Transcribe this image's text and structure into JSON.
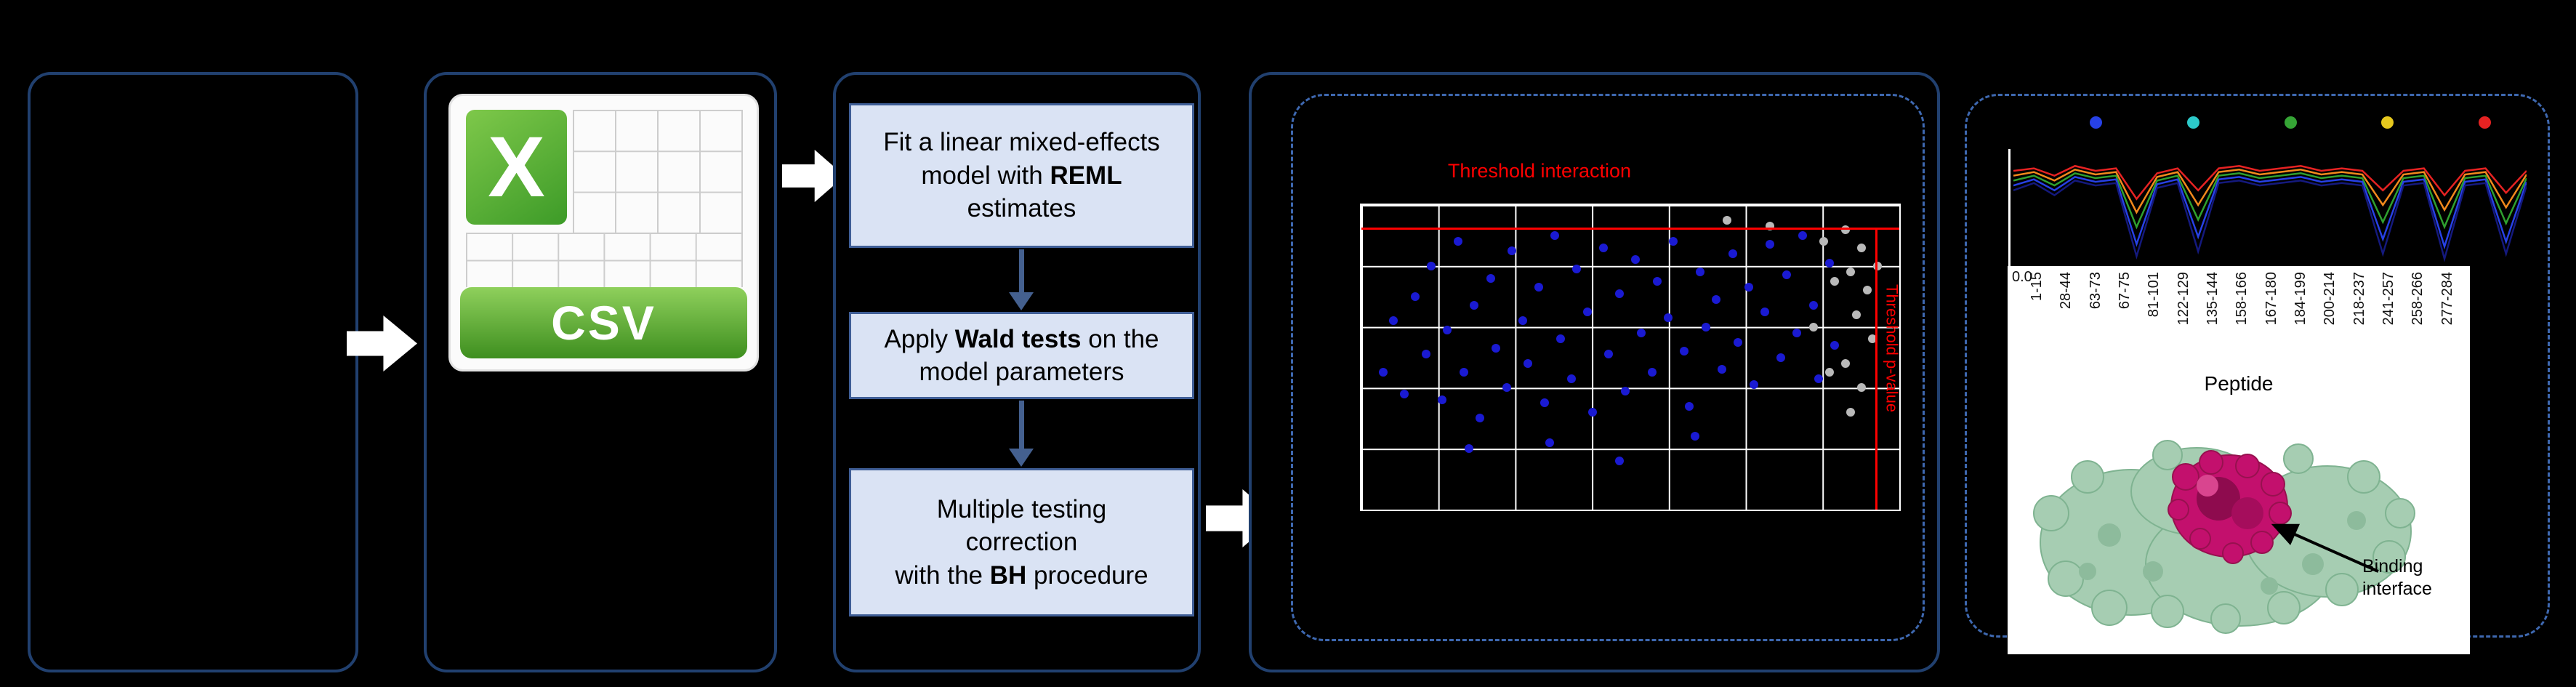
{
  "figure": {
    "csv_icon": {
      "letter": "X",
      "label": "CSV"
    },
    "steps": {
      "box1": {
        "pre": "Fit a linear mixed-effects model with ",
        "bold": "REML",
        "post": " estimates"
      },
      "box2": {
        "pre": "Apply ",
        "bold": "Wald tests",
        "post": " on the model parameters"
      },
      "box3": {
        "line1": "Multiple testing",
        "line2": "correction",
        "pre": "with the ",
        "bold": "BH",
        "post": " procedure"
      }
    },
    "protein": {
      "annotation_line1": "Binding",
      "annotation_line2": "interface"
    }
  },
  "chart_data": [
    {
      "type": "scatter",
      "title": "Threshold interaction",
      "vertical_threshold_label": "Threshold p-value",
      "grid": {
        "cols": 7,
        "rows": 5,
        "color": "#ffffff"
      },
      "thresholds": {
        "h_y_pct": 7.5,
        "v_x_pct": 95.5,
        "color": "#ff0000"
      },
      "series": [
        {
          "name": "blue-points",
          "color": "#1a1ad2",
          "points": [
            [
              4,
              55
            ],
            [
              6,
              38
            ],
            [
              8,
              62
            ],
            [
              10,
              30
            ],
            [
              12,
              49
            ],
            [
              13,
              20
            ],
            [
              15,
              64
            ],
            [
              16,
              41
            ],
            [
              18,
              12
            ],
            [
              19,
              55
            ],
            [
              21,
              33
            ],
            [
              22,
              70
            ],
            [
              24,
              24
            ],
            [
              25,
              47
            ],
            [
              27,
              60
            ],
            [
              28,
              15
            ],
            [
              30,
              38
            ],
            [
              31,
              52
            ],
            [
              33,
              27
            ],
            [
              34,
              65
            ],
            [
              36,
              10
            ],
            [
              37,
              44
            ],
            [
              39,
              57
            ],
            [
              40,
              21
            ],
            [
              42,
              35
            ],
            [
              43,
              68
            ],
            [
              45,
              14
            ],
            [
              46,
              49
            ],
            [
              48,
              29
            ],
            [
              49,
              61
            ],
            [
              51,
              18
            ],
            [
              52,
              42
            ],
            [
              54,
              55
            ],
            [
              55,
              25
            ],
            [
              57,
              37
            ],
            [
              58,
              12
            ],
            [
              60,
              48
            ],
            [
              61,
              66
            ],
            [
              63,
              22
            ],
            [
              64,
              40
            ],
            [
              66,
              31
            ],
            [
              67,
              54
            ],
            [
              69,
              16
            ],
            [
              70,
              45
            ],
            [
              72,
              27
            ],
            [
              73,
              59
            ],
            [
              75,
              35
            ],
            [
              76,
              13
            ],
            [
              78,
              50
            ],
            [
              79,
              23
            ],
            [
              81,
              42
            ],
            [
              82,
              10
            ],
            [
              84,
              33
            ],
            [
              85,
              57
            ],
            [
              87,
              19
            ],
            [
              88,
              46
            ],
            [
              20,
              80
            ],
            [
              35,
              78
            ],
            [
              48,
              84
            ],
            [
              62,
              76
            ]
          ]
        },
        {
          "name": "gray-points",
          "color": "#b9b9b9",
          "points": [
            [
              90,
              8
            ],
            [
              93,
              14
            ],
            [
              91,
              22
            ],
            [
              94,
              28
            ],
            [
              92,
              36
            ],
            [
              95,
              44
            ],
            [
              90,
              52
            ],
            [
              93,
              60
            ],
            [
              91,
              68
            ],
            [
              86,
              12
            ],
            [
              88,
              25
            ],
            [
              84,
              40
            ],
            [
              96,
              20
            ],
            [
              87,
              55
            ],
            [
              76,
              7
            ],
            [
              68,
              5
            ]
          ]
        }
      ]
    },
    {
      "type": "line",
      "xlabel": "Peptide",
      "y_first_tick": "0.0",
      "x_tick_labels": [
        "1-15",
        "28-44",
        "63-73",
        "67-75",
        "81-101",
        "122-129",
        "135-144",
        "158-166",
        "167-180",
        "184-199",
        "200-214",
        "218-237",
        "241-257",
        "258-266",
        "277-284"
      ],
      "legend_dot_colors": [
        "#2741e6",
        "#2cc9c9",
        "#35a435",
        "#e6c81e",
        "#e62222"
      ],
      "series": [
        {
          "name": "red",
          "color": "#e62222",
          "values": [
            0.78,
            0.8,
            0.74,
            0.82,
            0.78,
            0.8,
            0.55,
            0.76,
            0.8,
            0.62,
            0.8,
            0.82,
            0.78,
            0.8,
            0.82,
            0.78,
            0.8,
            0.78,
            0.62,
            0.78,
            0.8,
            0.58,
            0.78,
            0.8,
            0.6,
            0.78
          ]
        },
        {
          "name": "orange",
          "color": "#f2891c",
          "values": [
            0.74,
            0.77,
            0.7,
            0.79,
            0.75,
            0.77,
            0.44,
            0.73,
            0.77,
            0.5,
            0.77,
            0.79,
            0.75,
            0.77,
            0.79,
            0.75,
            0.77,
            0.75,
            0.5,
            0.75,
            0.77,
            0.46,
            0.75,
            0.77,
            0.48,
            0.75
          ]
        },
        {
          "name": "green",
          "color": "#2fa02f",
          "values": [
            0.7,
            0.74,
            0.66,
            0.76,
            0.72,
            0.74,
            0.32,
            0.7,
            0.74,
            0.38,
            0.74,
            0.76,
            0.72,
            0.74,
            0.76,
            0.72,
            0.74,
            0.72,
            0.36,
            0.72,
            0.74,
            0.32,
            0.72,
            0.74,
            0.35,
            0.72
          ]
        },
        {
          "name": "blue",
          "color": "#2741e6",
          "values": [
            0.66,
            0.71,
            0.62,
            0.73,
            0.69,
            0.71,
            0.18,
            0.67,
            0.71,
            0.24,
            0.71,
            0.73,
            0.69,
            0.71,
            0.73,
            0.69,
            0.71,
            0.69,
            0.22,
            0.69,
            0.71,
            0.16,
            0.69,
            0.71,
            0.2,
            0.69
          ]
        },
        {
          "name": "navy",
          "color": "#14197d",
          "values": [
            0.62,
            0.68,
            0.58,
            0.7,
            0.66,
            0.68,
            0.08,
            0.64,
            0.68,
            0.12,
            0.68,
            0.7,
            0.66,
            0.68,
            0.7,
            0.66,
            0.68,
            0.66,
            0.1,
            0.66,
            0.68,
            0.06,
            0.66,
            0.68,
            0.1,
            0.66
          ]
        }
      ]
    }
  ]
}
